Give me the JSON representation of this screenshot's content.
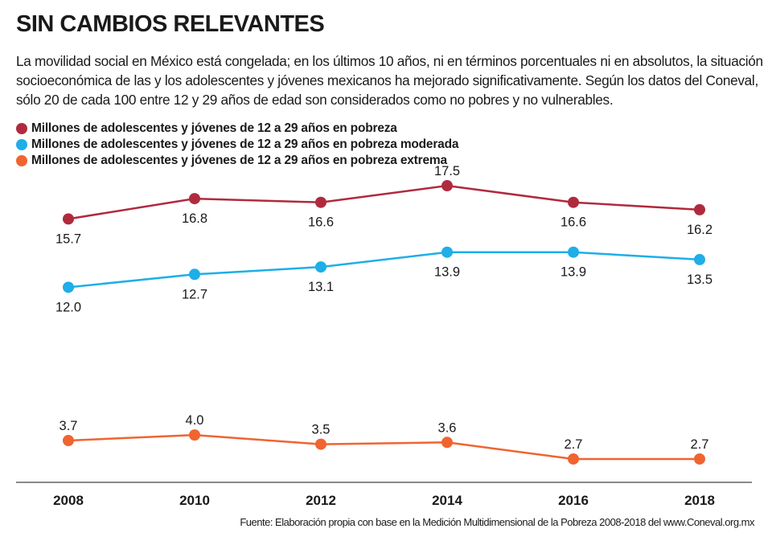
{
  "title": "SIN CAMBIOS RELEVANTES",
  "intro": "La movilidad social en México está congelada; en los últimos 10 años, ni en términos porcentuales ni en absolutos, la situación socioeconómica de las y los adolescentes y jóvenes mexicanos ha mejorado significativamente. Según los datos del Coneval, sólo 20 de cada 100 entre 12 y 29 años de edad son considerados como no pobres y no vulnerables.",
  "source": "Fuente: Elaboración propia con base en la Medición Multidimensional de la Pobreza 2008-2018 del www.Coneval.org.mx",
  "chart_data": {
    "type": "line",
    "x": [
      "2008",
      "2010",
      "2012",
      "2014",
      "2016",
      "2018"
    ],
    "series": [
      {
        "name": "Millones de adolescentes y jóvenes de 12 a 29 años en pobreza",
        "color": "#b02a3e",
        "values": [
          15.7,
          16.8,
          16.6,
          17.5,
          16.6,
          16.2
        ],
        "labels": [
          "15.7",
          "16.8",
          "16.6",
          "17.5",
          "16.6",
          "16.2"
        ]
      },
      {
        "name": "Millones de adolescentes y jóvenes de 12 a 29 años en pobreza moderada",
        "color": "#1eaee8",
        "values": [
          12.0,
          12.7,
          13.1,
          13.9,
          13.9,
          13.5
        ],
        "labels": [
          "12.0",
          "12.7",
          "13.1",
          "13.9",
          "13.9",
          "13.5"
        ]
      },
      {
        "name": "Millones de adolescentes y jóvenes de 12 a 29 años en pobreza extrema",
        "color": "#f06430",
        "values": [
          3.7,
          4.0,
          3.5,
          3.6,
          2.7,
          2.7
        ],
        "labels": [
          "3.7",
          "4.0",
          "3.5",
          "3.6",
          "2.7",
          "2.7"
        ]
      }
    ],
    "legend": "top-left",
    "grid": false
  }
}
